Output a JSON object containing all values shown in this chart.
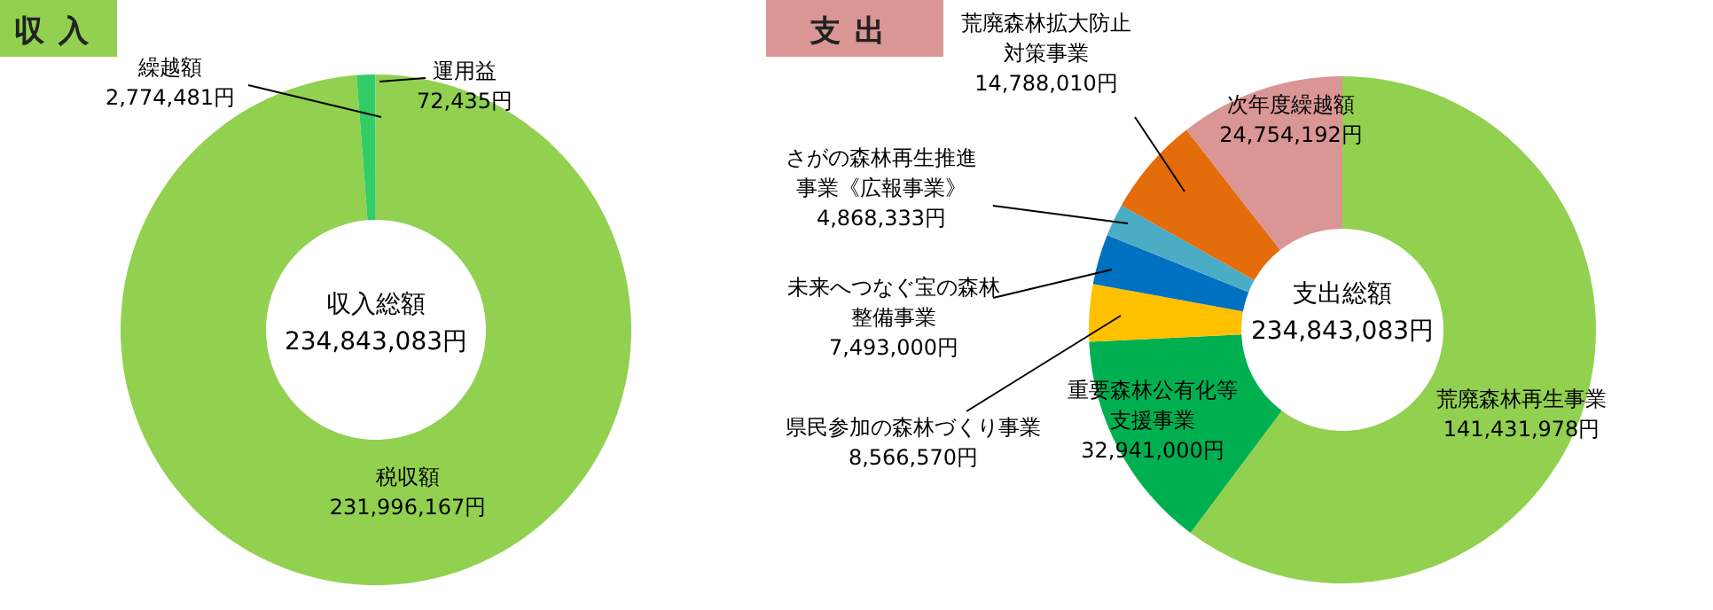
{
  "chart_data": [
    {
      "type": "donut",
      "title": "収入",
      "categories": [
        "税収額",
        "繰越額",
        "運用益"
      ],
      "values": [
        231996167,
        2774481,
        72435
      ],
      "colors": [
        "#92d050",
        "#33cc66",
        "#66dd88"
      ],
      "value_labels": [
        "231,996,167円",
        "2,774,481円",
        "72,435円"
      ],
      "annotations": [
        "収入総額",
        "234,843,083円"
      ]
    },
    {
      "type": "donut",
      "title": "支出",
      "categories": [
        "荒廃森林再生事業",
        "重要森林公有化等支援事業",
        "県民参加の森林づくり事業",
        "未来へつなぐ宝の森林整備事業",
        "さがの森林再生推進事業《広報事業》",
        "荒廃森林拡大防止対策事業",
        "次年度繰越額"
      ],
      "values": [
        141431978,
        32941000,
        8566570,
        7493000,
        4868333,
        14788010,
        24754192
      ],
      "colors": [
        "#92d050",
        "#00b050",
        "#ffc000",
        "#0070c0",
        "#4bacc6",
        "#e46c0a",
        "#d99694"
      ],
      "value_labels": [
        "141,431,978円",
        "32,941,000円",
        "8,566,570円",
        "7,493,000円",
        "4,868,333円",
        "14,788,010円",
        "24,754,192円"
      ],
      "annotations": [
        "支出総額",
        "234,843,083円"
      ]
    }
  ]
}
